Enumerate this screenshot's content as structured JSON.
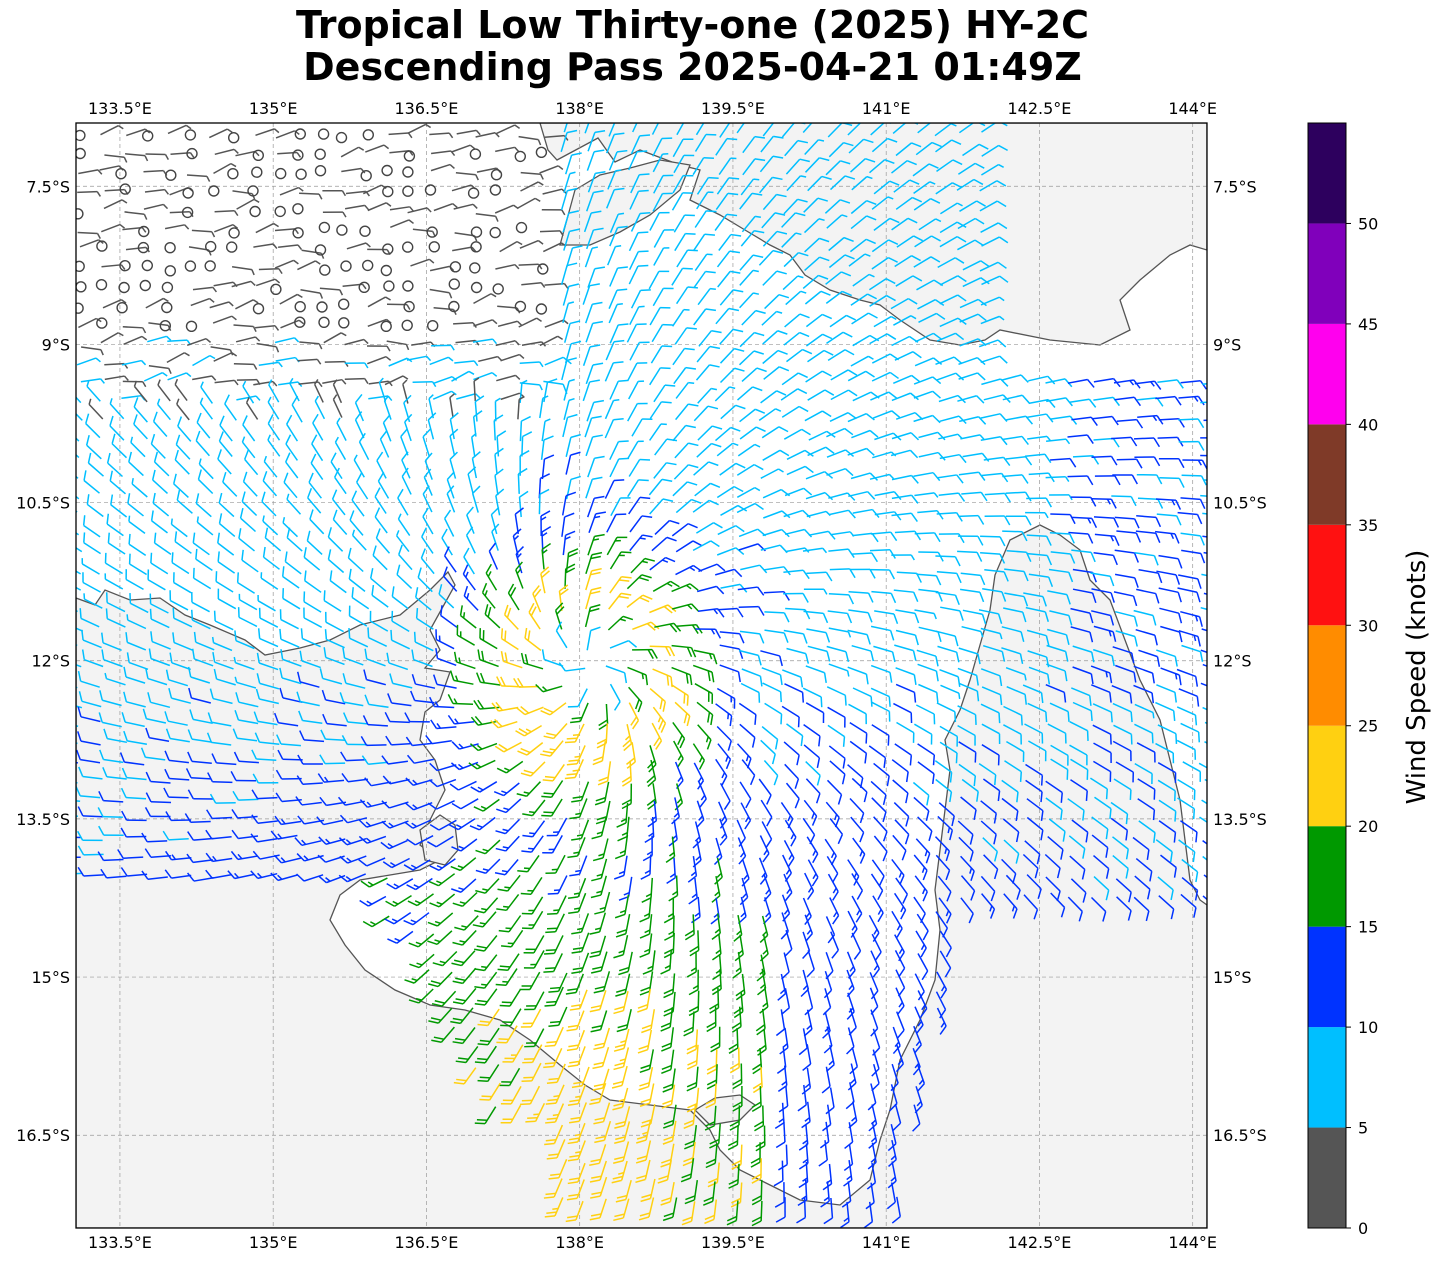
{
  "title": {
    "line1": "Tropical Low Thirty-one (2025) HY-2C",
    "line2": "Descending Pass 2025-04-21 01:49Z"
  },
  "map": {
    "lon_ticks": [
      "133.5°E",
      "135°E",
      "136.5°E",
      "138°E",
      "139.5°E",
      "141°E",
      "142.5°E",
      "144°E"
    ],
    "lat_ticks": [
      "7.5°S",
      "9°S",
      "10.5°S",
      "12°S",
      "13.5°S",
      "15°S",
      "16.5°S"
    ],
    "lon_values": [
      133.5,
      135,
      136.5,
      138,
      139.5,
      141,
      142.5,
      144
    ],
    "lat_values": [
      -7.5,
      -9,
      -10.5,
      -12,
      -13.5,
      -15,
      -16.5
    ],
    "extent": {
      "lon_min": 133.07,
      "lon_max": 144.14,
      "lat_min": -17.38,
      "lat_max": -6.9
    },
    "land_color": "#f2f2f2",
    "ocean_color": "#ffffff",
    "coast_color": "#555555",
    "grid": true
  },
  "wind": {
    "center_lon": 138.1,
    "center_lat": -12.05,
    "calm_marker": "circle"
  },
  "colorbar": {
    "label": "Wind Speed (knots)",
    "ticks": [
      "0",
      "5",
      "10",
      "15",
      "20",
      "25",
      "30",
      "35",
      "40",
      "45",
      "50"
    ],
    "bins": [
      {
        "min": 0,
        "max": 5,
        "color": "#555555"
      },
      {
        "min": 5,
        "max": 10,
        "color": "#00bfff"
      },
      {
        "min": 10,
        "max": 15,
        "color": "#0033ff"
      },
      {
        "min": 15,
        "max": 20,
        "color": "#009900"
      },
      {
        "min": 20,
        "max": 25,
        "color": "#ffd011"
      },
      {
        "min": 25,
        "max": 30,
        "color": "#ff8c00"
      },
      {
        "min": 30,
        "max": 35,
        "color": "#ff1111"
      },
      {
        "min": 35,
        "max": 40,
        "color": "#7f3a28"
      },
      {
        "min": 40,
        "max": 45,
        "color": "#ff00ee"
      },
      {
        "min": 45,
        "max": 50,
        "color": "#8000bb"
      },
      {
        "min": 50,
        "max": 55,
        "color": "#2d005e"
      }
    ]
  }
}
